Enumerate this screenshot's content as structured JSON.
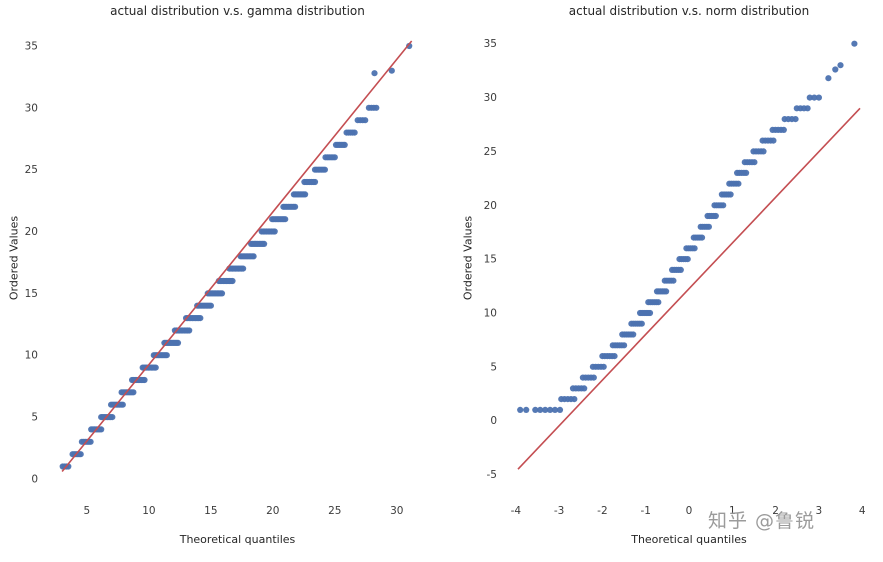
{
  "page": {
    "background": "#ffffff",
    "watermark": "知乎 @鲁锐"
  },
  "chart_data": [
    {
      "type": "scatter",
      "title": "actual distribution v.s. gamma distribution",
      "xlabel": "Theoretical quantiles",
      "ylabel": "Ordered Values",
      "xlim": [
        1.7,
        32.6
      ],
      "ylim": [
        -1.3,
        37.1
      ],
      "xticks": [
        5,
        10,
        15,
        20,
        25,
        30
      ],
      "yticks": [
        0,
        5,
        10,
        15,
        20,
        25,
        30,
        35
      ],
      "grid": false,
      "legend": "none",
      "point_color": "#4c72b0",
      "line_color": "#c44e52",
      "fit_line": {
        "x": [
          3.0,
          31.2
        ],
        "y": [
          0.6,
          35.4
        ]
      },
      "bands": [
        [
          1,
          3.05,
          3.5,
          4
        ],
        [
          2,
          3.85,
          4.5,
          6
        ],
        [
          3,
          4.6,
          5.3,
          6
        ],
        [
          4,
          5.35,
          6.15,
          7
        ],
        [
          5,
          6.15,
          7.05,
          8
        ],
        [
          6,
          6.95,
          7.9,
          8
        ],
        [
          7,
          7.8,
          8.75,
          9
        ],
        [
          8,
          8.65,
          9.65,
          9
        ],
        [
          9,
          9.5,
          10.55,
          10
        ],
        [
          10,
          10.4,
          11.45,
          10
        ],
        [
          11,
          11.25,
          12.35,
          10
        ],
        [
          12,
          12.1,
          13.25,
          10
        ],
        [
          13,
          13.0,
          14.15,
          10
        ],
        [
          14,
          13.9,
          15.0,
          10
        ],
        [
          15,
          14.75,
          15.9,
          10
        ],
        [
          16,
          15.65,
          16.75,
          10
        ],
        [
          17,
          16.5,
          17.6,
          10
        ],
        [
          18,
          17.4,
          18.45,
          10
        ],
        [
          19,
          18.25,
          19.3,
          9
        ],
        [
          20,
          19.1,
          20.15,
          9
        ],
        [
          21,
          19.95,
          21.0,
          9
        ],
        [
          22,
          20.85,
          21.8,
          8
        ],
        [
          23,
          21.7,
          22.6,
          8
        ],
        [
          24,
          22.55,
          23.4,
          7
        ],
        [
          25,
          23.4,
          24.2,
          7
        ],
        [
          26,
          24.25,
          25.0,
          6
        ],
        [
          27,
          25.1,
          25.8,
          6
        ],
        [
          28,
          25.95,
          26.6,
          5
        ],
        [
          29,
          26.85,
          27.45,
          4
        ],
        [
          30,
          27.75,
          28.35,
          4
        ]
      ],
      "extra_points": [
        [
          28.2,
          32.8
        ],
        [
          29.6,
          33.0
        ],
        [
          31.0,
          35.0
        ]
      ]
    },
    {
      "type": "scatter",
      "title": "actual distribution v.s. norm distribution",
      "xlabel": "Theoretical quantiles",
      "ylabel": "Ordered Values",
      "xlim": [
        -4.25,
        4.25
      ],
      "ylim": [
        -6.9,
        37.2
      ],
      "xticks": [
        -4,
        -3,
        -2,
        -1,
        0,
        1,
        2,
        3,
        4
      ],
      "yticks": [
        -5,
        0,
        5,
        10,
        15,
        20,
        25,
        30,
        35
      ],
      "grid": false,
      "legend": "none",
      "point_color": "#4c72b0",
      "line_color": "#c44e52",
      "fit_line": {
        "x": [
          -3.95,
          3.95
        ],
        "y": [
          -4.5,
          29.0
        ]
      },
      "bands": [
        [
          1,
          -3.55,
          -2.98,
          6
        ],
        [
          2,
          -2.95,
          -2.65,
          5
        ],
        [
          3,
          -2.68,
          -2.42,
          5
        ],
        [
          4,
          -2.45,
          -2.2,
          5
        ],
        [
          5,
          -2.22,
          -1.97,
          5
        ],
        [
          6,
          -2.0,
          -1.72,
          6
        ],
        [
          7,
          -1.76,
          -1.5,
          6
        ],
        [
          8,
          -1.54,
          -1.29,
          6
        ],
        [
          9,
          -1.33,
          -1.09,
          6
        ],
        [
          10,
          -1.13,
          -0.9,
          6
        ],
        [
          11,
          -0.94,
          -0.71,
          6
        ],
        [
          12,
          -0.74,
          -0.53,
          6
        ],
        [
          13,
          -0.56,
          -0.36,
          5
        ],
        [
          14,
          -0.39,
          -0.19,
          5
        ],
        [
          15,
          -0.22,
          -0.03,
          5
        ],
        [
          16,
          -0.06,
          0.13,
          5
        ],
        [
          17,
          0.11,
          0.3,
          5
        ],
        [
          18,
          0.27,
          0.46,
          5
        ],
        [
          19,
          0.43,
          0.62,
          5
        ],
        [
          20,
          0.59,
          0.79,
          5
        ],
        [
          21,
          0.76,
          0.96,
          5
        ],
        [
          22,
          0.93,
          1.14,
          5
        ],
        [
          23,
          1.11,
          1.32,
          5
        ],
        [
          24,
          1.29,
          1.51,
          5
        ],
        [
          25,
          1.49,
          1.72,
          5
        ],
        [
          26,
          1.7,
          1.95,
          5
        ],
        [
          27,
          1.93,
          2.19,
          5
        ],
        [
          28,
          2.21,
          2.46,
          4
        ],
        [
          29,
          2.49,
          2.74,
          4
        ],
        [
          30,
          2.79,
          3.0,
          3
        ]
      ],
      "extra_points": [
        [
          -3.9,
          1
        ],
        [
          -3.76,
          1
        ],
        [
          3.22,
          31.8
        ],
        [
          3.38,
          32.6
        ],
        [
          3.5,
          33.0
        ],
        [
          3.82,
          35.0
        ]
      ]
    }
  ]
}
